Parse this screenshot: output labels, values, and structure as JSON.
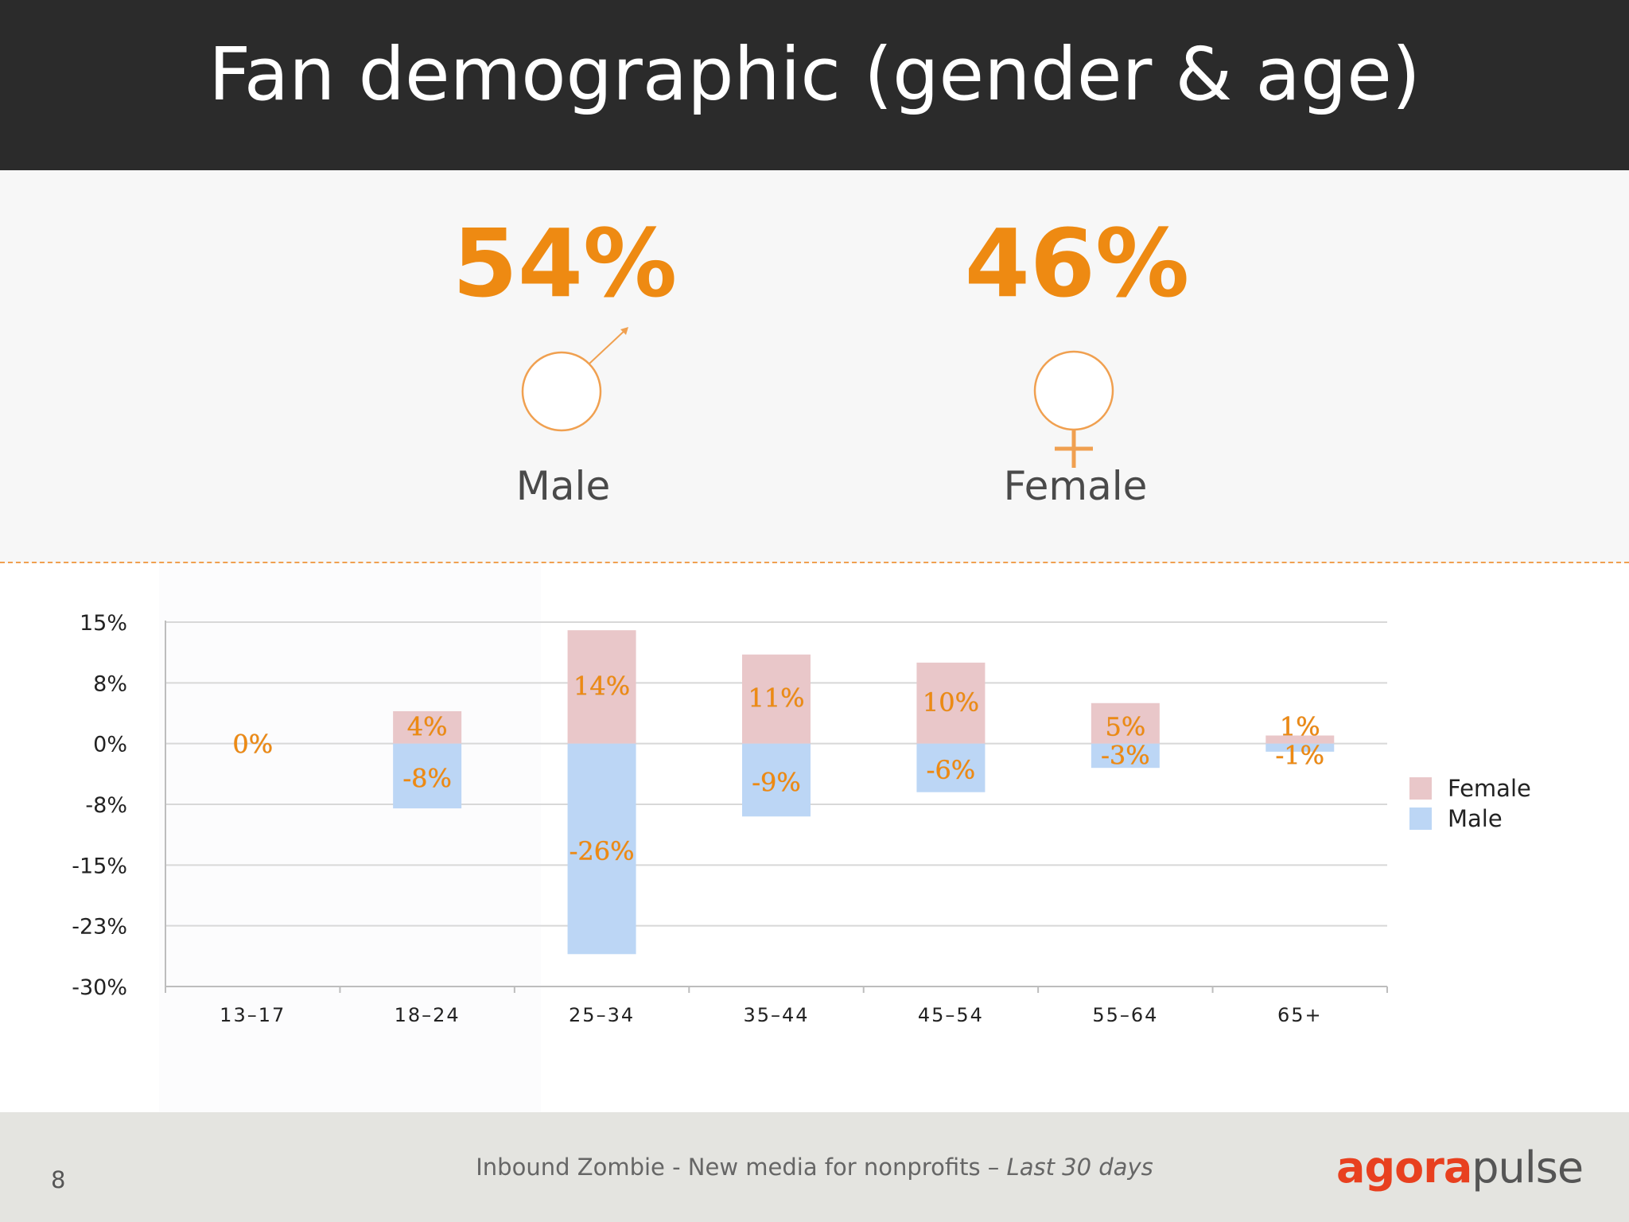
{
  "slide": {
    "title": "Fan demographic (gender & age)",
    "page_number": "8",
    "footer": {
      "text": "Inbound Zombie - New media for nonprofits – ",
      "period": "Last 30 days"
    },
    "logo": {
      "part1": "agora",
      "part2": "pulse"
    }
  },
  "gender_summary": {
    "male": {
      "percent": "54%",
      "label": "Male",
      "icon": "male-symbol-icon"
    },
    "female": {
      "percent": "46%",
      "label": "Female",
      "icon": "female-symbol-icon"
    }
  },
  "colors": {
    "header_bg": "#2b2b2b",
    "accent": "#ee8a12",
    "female": "#e9c7c9",
    "male": "#bcd6f5",
    "logo_red": "#e8401f"
  },
  "chart_data": {
    "type": "bar",
    "categories": [
      "13-17",
      "18-24",
      "25-34",
      "35-44",
      "45-54",
      "55-64",
      "65+"
    ],
    "series": [
      {
        "name": "Female",
        "values": [
          0,
          4,
          14,
          11,
          10,
          5,
          1
        ],
        "labels": [
          "0%",
          "4%",
          "14%",
          "11%",
          "10%",
          "5%",
          "1%"
        ]
      },
      {
        "name": "Male",
        "values": [
          0,
          -8,
          -26,
          -9,
          -6,
          -3,
          -1
        ],
        "labels": [
          "",
          "-8%",
          "-26%",
          "-9%",
          "-6%",
          "-3%",
          "-1%"
        ]
      }
    ],
    "ylim": [
      -30,
      15
    ],
    "yticks": [
      15,
      7.5,
      0,
      -7.5,
      -15,
      -22.5,
      -30
    ],
    "ytick_labels": [
      "15%",
      "8%",
      "0%",
      "-8%",
      "-15%",
      "-23%",
      "-30%"
    ],
    "grid": true,
    "legend": "right",
    "title": "",
    "xlabel": "",
    "ylabel": ""
  }
}
